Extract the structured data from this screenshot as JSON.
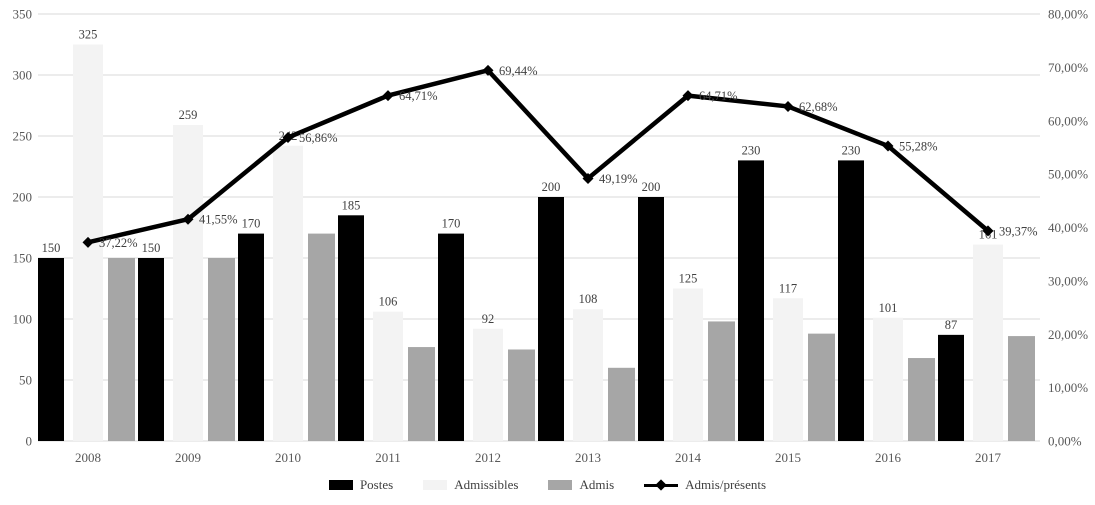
{
  "chart_data": {
    "type": "combo-bar-line",
    "title": "",
    "categories": [
      "2008",
      "2009",
      "2010",
      "2011",
      "2012",
      "2013",
      "2014",
      "2015",
      "2016",
      "2017"
    ],
    "series": [
      {
        "name": "Postes",
        "type": "bar",
        "axis": "left",
        "color": "#000000",
        "values": [
          150,
          150,
          170,
          185,
          170,
          200,
          200,
          230,
          230,
          87
        ],
        "labels": [
          "150",
          "150",
          "170",
          "185",
          "170",
          "200",
          "200",
          "230",
          "230",
          "87"
        ]
      },
      {
        "name": "Admissibles",
        "type": "bar",
        "axis": "left",
        "color": "#f3f3f3",
        "values": [
          325,
          259,
          242,
          106,
          92,
          108,
          125,
          117,
          101,
          161
        ],
        "labels": [
          "325",
          "259",
          "242",
          "106",
          "92",
          "108",
          "125",
          "117",
          "101",
          "161"
        ]
      },
      {
        "name": "Admis",
        "type": "bar",
        "axis": "left",
        "color": "#a6a6a6",
        "values": [
          150,
          150,
          170,
          77,
          75,
          60,
          98,
          88,
          68,
          86
        ]
      },
      {
        "name": "Admis/présents",
        "type": "line",
        "axis": "right",
        "color": "#000000",
        "values": [
          37.22,
          41.55,
          56.86,
          64.71,
          69.44,
          49.19,
          64.71,
          62.68,
          55.28,
          39.37
        ],
        "labels": [
          "37,22%",
          "41,55%",
          "56,86%",
          "64,71%",
          "69,44%",
          "49,19%",
          "64,71%",
          "62,68%",
          "55,28%",
          "39,37%"
        ]
      }
    ],
    "left_axis": {
      "min": 0,
      "max": 350,
      "step": 50,
      "ticks": [
        "350",
        "300",
        "250",
        "200",
        "150",
        "100",
        "50",
        "0"
      ]
    },
    "right_axis": {
      "min": 0,
      "max": 80,
      "step": 10,
      "ticks": [
        "80,00%",
        "70,00%",
        "60,00%",
        "50,00%",
        "40,00%",
        "30,00%",
        "20,00%",
        "10,00%",
        "0,00%"
      ]
    },
    "grid": true,
    "legend_position": "bottom"
  },
  "colors": {
    "background": "#ffffff",
    "gridline": "#d9d9d9",
    "tick_text": "#595959",
    "label_text": "#404040"
  }
}
